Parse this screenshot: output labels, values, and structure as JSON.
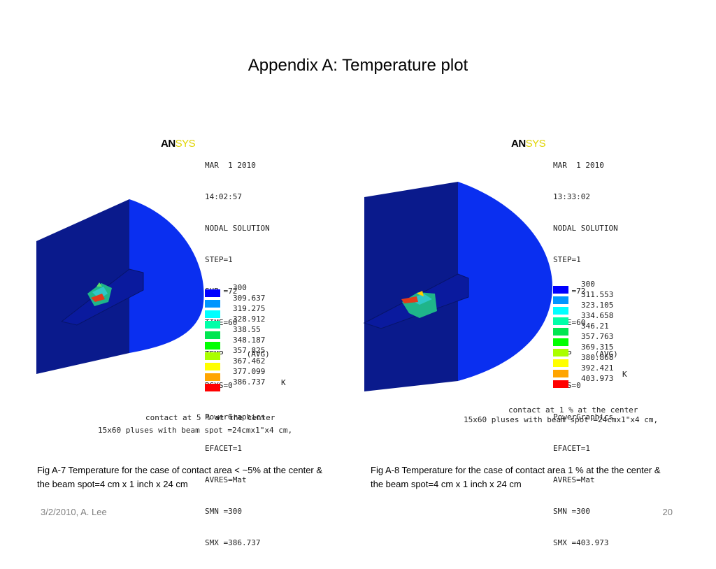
{
  "slide": {
    "title": "Appendix A: Temperature plot",
    "footer_left": "3/2/2010, A. Lee",
    "page_number": "20"
  },
  "figures": [
    {
      "logo_main": "AN",
      "logo_sys": "SYS",
      "info_lines": [
        "MAR  1 2010",
        "14:02:57",
        "NODAL SOLUTION",
        "STEP=1",
        "SUB =72",
        "TIME=60",
        "TEMP     (AVG)",
        "RSYS=0",
        "PowerGraphics",
        "EFACET=1",
        "AVRES=Mat",
        "SMN =300",
        "SMX =386.737"
      ],
      "legend_values": [
        "300",
        "309.637",
        "319.275",
        "328.912",
        "338.55",
        "348.187",
        "357.825",
        "367.462",
        "377.099",
        "386.737"
      ],
      "unit": "K",
      "note_line1": "contact at 5 % at the center",
      "note_line2": "15x60 pluses with beam spot =24cmx1\"x4 cm,",
      "caption": "Fig A-7 Temperature for the case of  contact area < ~5% at the center   & the  beam spot=4 cm x 1 inch x 24 cm"
    },
    {
      "logo_main": "AN",
      "logo_sys": "SYS",
      "info_lines": [
        "MAR  1 2010",
        "13:33:02",
        "NODAL SOLUTION",
        "STEP=1",
        "SUB =72",
        "TIME=60",
        "TEMP     (AVG)",
        "RSYS=0",
        "PowerGraphics",
        "EFACET=1",
        "AVRES=Mat",
        "SMN =300",
        "SMX =403.973"
      ],
      "legend_values": [
        "300",
        "311.553",
        "323.105",
        "334.658",
        "346.21",
        "357.763",
        "369.315",
        "380.868",
        "392.421",
        "403.973"
      ],
      "unit": "K",
      "note_line1": "contact at 1 % at the center",
      "note_line2": "15x60 pluses with beam spot =24cmx1\"x4 cm,",
      "caption": "Fig A-8 Temperature for the case of  contact area 1 % at the the center &  the beam spot=4 cm x 1 inch x 24 cm"
    }
  ],
  "legend_colors": [
    "#0000ff",
    "#0096ff",
    "#00ffff",
    "#00ffa8",
    "#00e650",
    "#00ff00",
    "#aaff00",
    "#ffff00",
    "#ffa500",
    "#ff0000"
  ]
}
